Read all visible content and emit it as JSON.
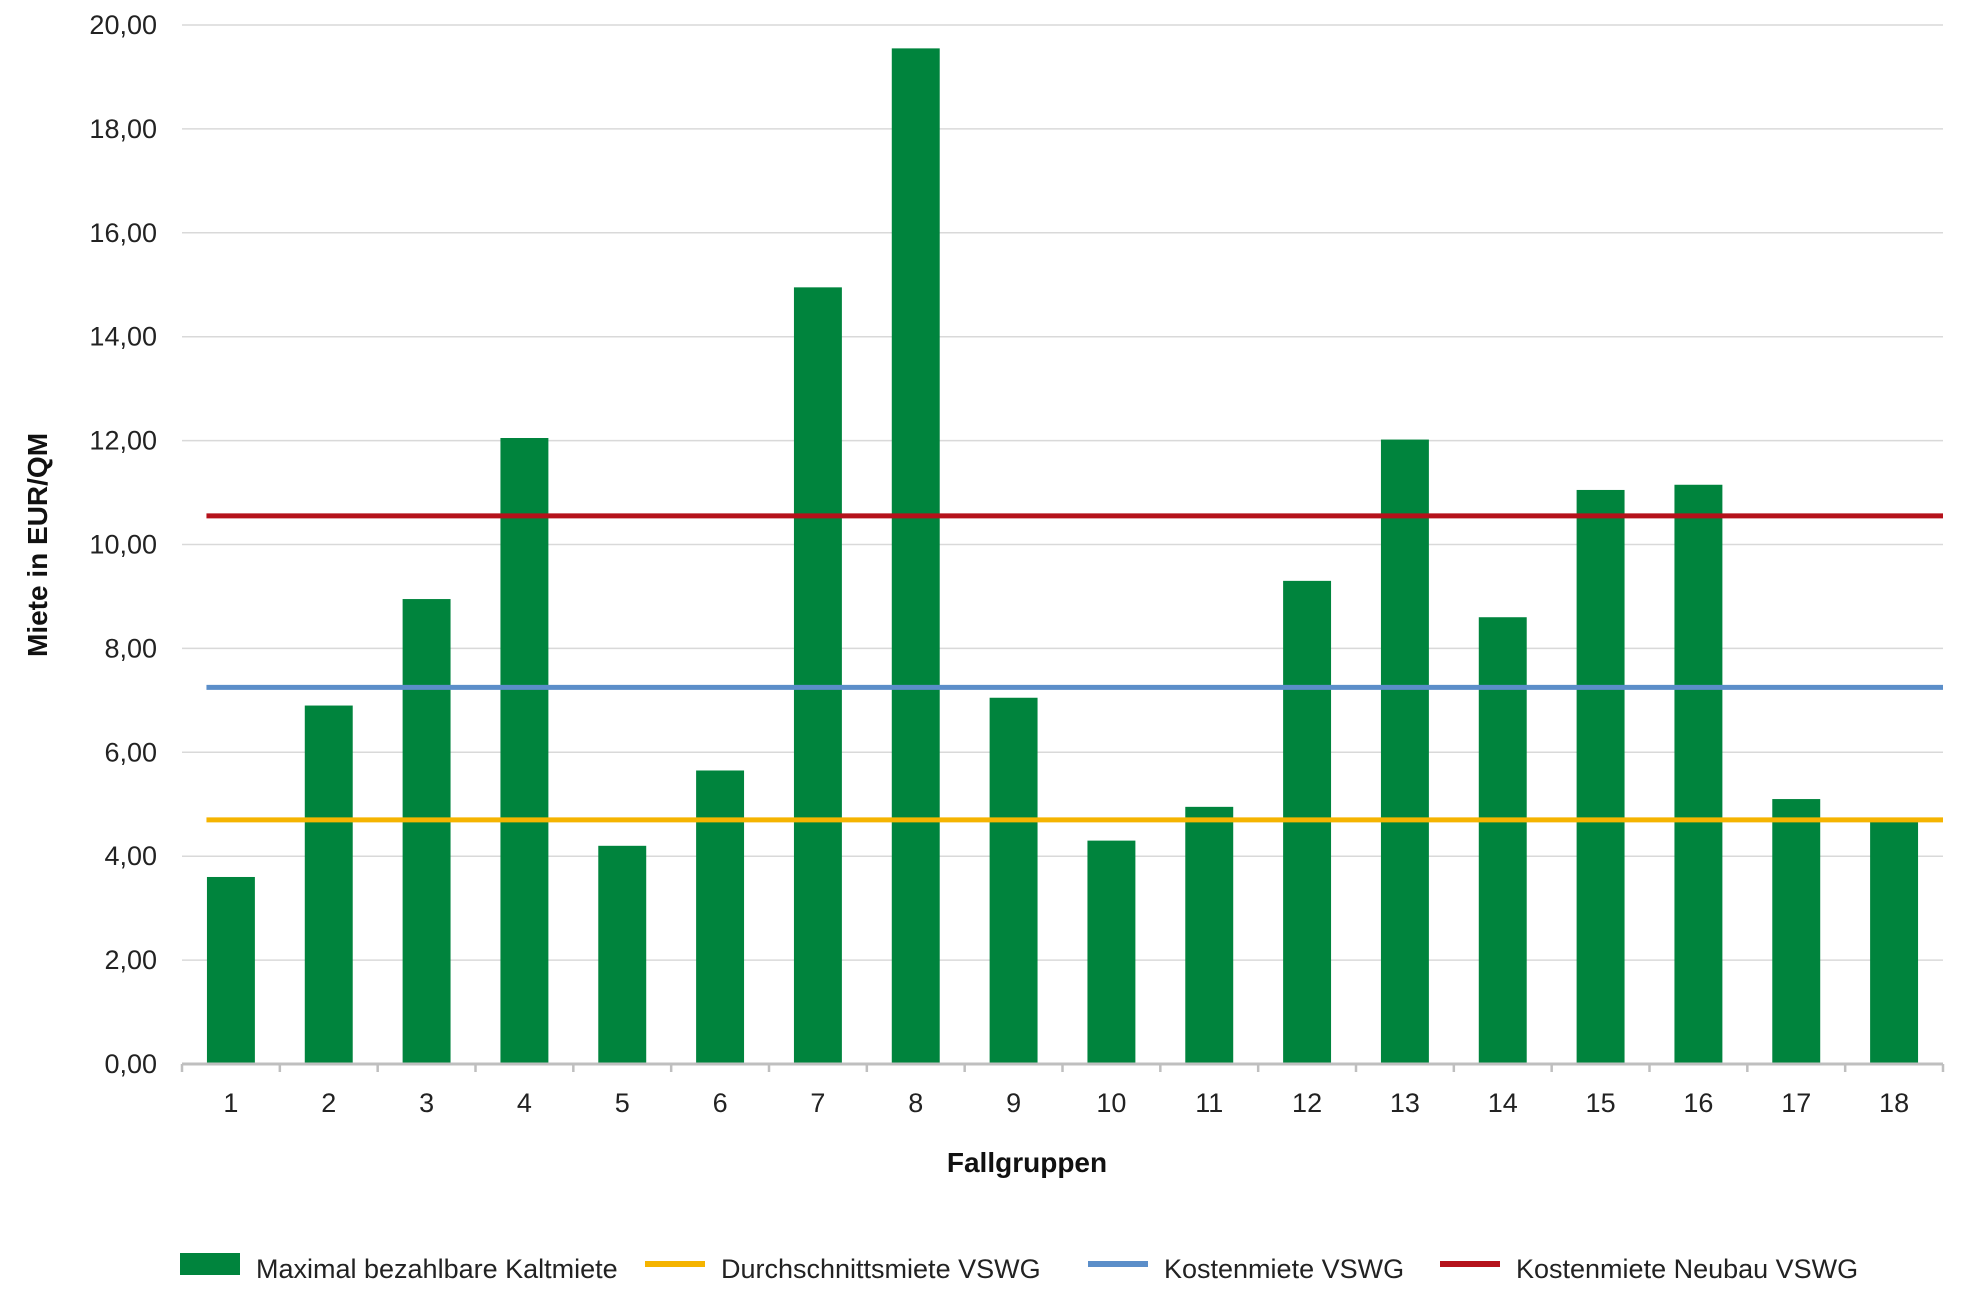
{
  "chart_data": {
    "type": "bar",
    "title": "",
    "xlabel": "Fallgruppen",
    "ylabel": "Miete in EUR/QM",
    "ylim": [
      0,
      20
    ],
    "y_ticks": [
      "0,00",
      "2,00",
      "4,00",
      "6,00",
      "8,00",
      "10,00",
      "12,00",
      "14,00",
      "16,00",
      "18,00",
      "20,00"
    ],
    "categories": [
      "1",
      "2",
      "3",
      "4",
      "5",
      "6",
      "7",
      "8",
      "9",
      "10",
      "11",
      "12",
      "13",
      "14",
      "15",
      "16",
      "17",
      "18"
    ],
    "grid": true,
    "legend_position": "bottom",
    "series": [
      {
        "name": "Maximal bezahlbare Kaltmiete",
        "kind": "bar",
        "color": "#00843D",
        "values": [
          3.6,
          6.9,
          8.95,
          12.05,
          4.2,
          5.65,
          14.95,
          19.55,
          7.05,
          4.3,
          4.95,
          9.3,
          12.02,
          8.6,
          11.05,
          11.15,
          5.1,
          4.72
        ]
      },
      {
        "name": "Durchschnittsmiete VSWG",
        "kind": "line",
        "color": "#F5B400",
        "value": 4.7
      },
      {
        "name": "Kostenmiete VSWG",
        "kind": "line",
        "color": "#5B8EC9",
        "value": 7.25
      },
      {
        "name": "Kostenmiete Neubau VSWG",
        "kind": "line",
        "color": "#B5121B",
        "value": 10.55
      }
    ]
  }
}
